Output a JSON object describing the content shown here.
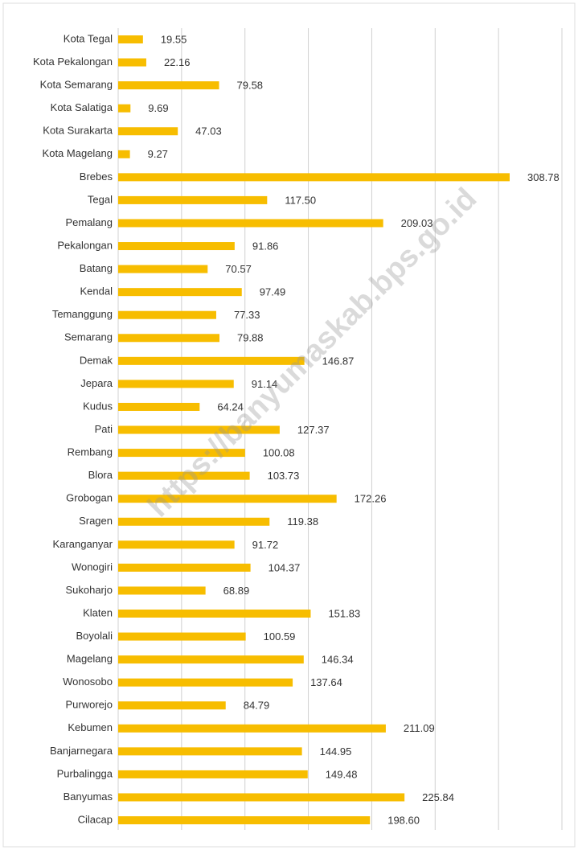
{
  "chart_data": {
    "type": "bar",
    "orientation": "horizontal",
    "categories": [
      "Kota Tegal",
      "Kota Pekalongan",
      "Kota Semarang",
      "Kota Salatiga",
      "Kota Surakarta",
      "Kota Magelang",
      "Brebes",
      "Tegal",
      "Pemalang",
      "Pekalongan",
      "Batang",
      "Kendal",
      "Temanggung",
      "Semarang",
      "Demak",
      "Jepara",
      "Kudus",
      "Pati",
      "Rembang",
      "Blora",
      "Grobogan",
      "Sragen",
      "Karanganyar",
      "Wonogiri",
      "Sukoharjo",
      "Klaten",
      "Boyolali",
      "Magelang",
      "Wonosobo",
      "Purworejo",
      "Kebumen",
      "Banjarnegara",
      "Purbalingga",
      "Banyumas",
      "Cilacap"
    ],
    "values": [
      19.55,
      22.16,
      79.58,
      9.69,
      47.03,
      9.27,
      308.78,
      117.5,
      209.03,
      91.86,
      70.57,
      97.49,
      77.33,
      79.88,
      146.87,
      91.14,
      64.24,
      127.37,
      100.08,
      103.73,
      172.26,
      119.38,
      91.72,
      104.37,
      68.89,
      151.83,
      100.59,
      146.34,
      137.64,
      84.79,
      211.09,
      144.95,
      149.48,
      225.84,
      198.6
    ],
    "value_labels": [
      "19.55",
      "22.16",
      "79.58",
      "9.69",
      "47.03",
      "9.27",
      "308.78",
      "117.50",
      "209.03",
      "91.86",
      "70.57",
      "97.49",
      "77.33",
      "79.88",
      "146.87",
      "91.14",
      "64.24",
      "127.37",
      "100.08",
      "103.73",
      "172.26",
      "119.38",
      "91.72",
      "104.37",
      "68.89",
      "151.83",
      "100.59",
      "146.34",
      "137.64",
      "84.79",
      "211.09",
      "144.95",
      "149.48",
      "225.84",
      "198.60"
    ],
    "color": "#f7bd00",
    "xlim": [
      0,
      350
    ],
    "xticks": [
      0,
      50,
      100,
      150,
      200,
      250,
      300,
      350
    ],
    "grid": true,
    "watermark": "https://banyumaskab.bps.go.id"
  }
}
